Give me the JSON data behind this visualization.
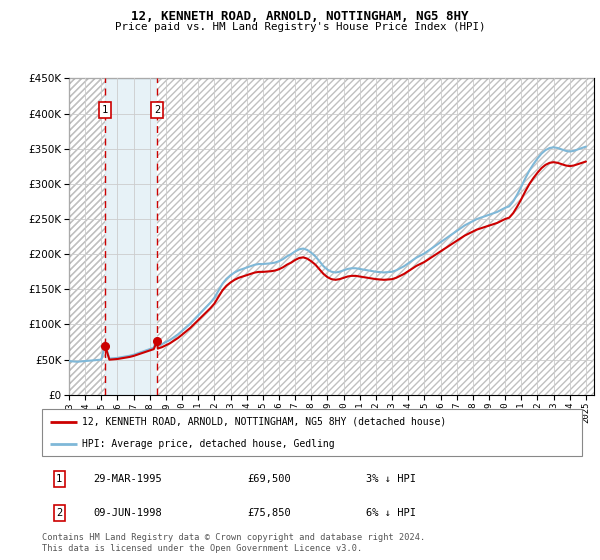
{
  "title": "12, KENNETH ROAD, ARNOLD, NOTTINGHAM, NG5 8HY",
  "subtitle": "Price paid vs. HM Land Registry's House Price Index (HPI)",
  "legend_line1": "12, KENNETH ROAD, ARNOLD, NOTTINGHAM, NG5 8HY (detached house)",
  "legend_line2": "HPI: Average price, detached house, Gedling",
  "footnote": "Contains HM Land Registry data © Crown copyright and database right 2024.\nThis data is licensed under the Open Government Licence v3.0.",
  "sale1_date": "29-MAR-1995",
  "sale1_price": 69500,
  "sale1_hpi": "3% ↓ HPI",
  "sale2_date": "09-JUN-1998",
  "sale2_price": 75850,
  "sale2_hpi": "6% ↓ HPI",
  "sale1_year": 1995.24,
  "sale2_year": 1998.44,
  "hpi_color": "#7fb8d8",
  "sale_color": "#cc0000",
  "grid_color": "#cccccc",
  "ylim": [
    0,
    450000
  ],
  "yticks": [
    0,
    50000,
    100000,
    150000,
    200000,
    250000,
    300000,
    350000,
    400000,
    450000
  ],
  "xlim_min": 1993.0,
  "xlim_max": 2025.5,
  "hpi_data": [
    [
      1993.0,
      48000
    ],
    [
      1993.25,
      47500
    ],
    [
      1993.5,
      47000
    ],
    [
      1993.75,
      47500
    ],
    [
      1994.0,
      48000
    ],
    [
      1994.25,
      48500
    ],
    [
      1994.5,
      49000
    ],
    [
      1994.75,
      49500
    ],
    [
      1995.0,
      50000
    ],
    [
      1995.24,
      71650
    ],
    [
      1995.5,
      51500
    ],
    [
      1995.75,
      52000
    ],
    [
      1996.0,
      52500
    ],
    [
      1996.25,
      53500
    ],
    [
      1996.5,
      54500
    ],
    [
      1996.75,
      55500
    ],
    [
      1997.0,
      57000
    ],
    [
      1997.25,
      59000
    ],
    [
      1997.5,
      61000
    ],
    [
      1997.75,
      63000
    ],
    [
      1998.0,
      65000
    ],
    [
      1998.25,
      67000
    ],
    [
      1998.44,
      80700
    ],
    [
      1998.5,
      70000
    ],
    [
      1998.75,
      72000
    ],
    [
      1999.0,
      75000
    ],
    [
      1999.25,
      78000
    ],
    [
      1999.5,
      82000
    ],
    [
      1999.75,
      86000
    ],
    [
      2000.0,
      91000
    ],
    [
      2000.25,
      96000
    ],
    [
      2000.5,
      101000
    ],
    [
      2000.75,
      107000
    ],
    [
      2001.0,
      113000
    ],
    [
      2001.25,
      119000
    ],
    [
      2001.5,
      125000
    ],
    [
      2001.75,
      131000
    ],
    [
      2002.0,
      138000
    ],
    [
      2002.25,
      148000
    ],
    [
      2002.5,
      158000
    ],
    [
      2002.75,
      165000
    ],
    [
      2003.0,
      170000
    ],
    [
      2003.25,
      174000
    ],
    [
      2003.5,
      177000
    ],
    [
      2003.75,
      179000
    ],
    [
      2004.0,
      181000
    ],
    [
      2004.25,
      183000
    ],
    [
      2004.5,
      185000
    ],
    [
      2004.75,
      186000
    ],
    [
      2005.0,
      186000
    ],
    [
      2005.25,
      186500
    ],
    [
      2005.5,
      187000
    ],
    [
      2005.75,
      188000
    ],
    [
      2006.0,
      190000
    ],
    [
      2006.25,
      193000
    ],
    [
      2006.5,
      197000
    ],
    [
      2006.75,
      200000
    ],
    [
      2007.0,
      204000
    ],
    [
      2007.25,
      207000
    ],
    [
      2007.5,
      208000
    ],
    [
      2007.75,
      206000
    ],
    [
      2008.0,
      202000
    ],
    [
      2008.25,
      197000
    ],
    [
      2008.5,
      190000
    ],
    [
      2008.75,
      183000
    ],
    [
      2009.0,
      178000
    ],
    [
      2009.25,
      175000
    ],
    [
      2009.5,
      174000
    ],
    [
      2009.75,
      175000
    ],
    [
      2010.0,
      177000
    ],
    [
      2010.25,
      179000
    ],
    [
      2010.5,
      180000
    ],
    [
      2010.75,
      180000
    ],
    [
      2011.0,
      179000
    ],
    [
      2011.25,
      178000
    ],
    [
      2011.5,
      177000
    ],
    [
      2011.75,
      176000
    ],
    [
      2012.0,
      175000
    ],
    [
      2012.25,
      174500
    ],
    [
      2012.5,
      174000
    ],
    [
      2012.75,
      174500
    ],
    [
      2013.0,
      175000
    ],
    [
      2013.25,
      177000
    ],
    [
      2013.5,
      180000
    ],
    [
      2013.75,
      183000
    ],
    [
      2014.0,
      187000
    ],
    [
      2014.25,
      191000
    ],
    [
      2014.5,
      195000
    ],
    [
      2014.75,
      198000
    ],
    [
      2015.0,
      201000
    ],
    [
      2015.25,
      205000
    ],
    [
      2015.5,
      209000
    ],
    [
      2015.75,
      213000
    ],
    [
      2016.0,
      217000
    ],
    [
      2016.25,
      221000
    ],
    [
      2016.5,
      225000
    ],
    [
      2016.75,
      229000
    ],
    [
      2017.0,
      233000
    ],
    [
      2017.25,
      237000
    ],
    [
      2017.5,
      241000
    ],
    [
      2017.75,
      244000
    ],
    [
      2018.0,
      247000
    ],
    [
      2018.25,
      250000
    ],
    [
      2018.5,
      252000
    ],
    [
      2018.75,
      254000
    ],
    [
      2019.0,
      256000
    ],
    [
      2019.25,
      258000
    ],
    [
      2019.5,
      260000
    ],
    [
      2019.75,
      263000
    ],
    [
      2020.0,
      266000
    ],
    [
      2020.25,
      268000
    ],
    [
      2020.5,
      275000
    ],
    [
      2020.75,
      285000
    ],
    [
      2021.0,
      296000
    ],
    [
      2021.25,
      308000
    ],
    [
      2021.5,
      319000
    ],
    [
      2021.75,
      328000
    ],
    [
      2022.0,
      336000
    ],
    [
      2022.25,
      343000
    ],
    [
      2022.5,
      348000
    ],
    [
      2022.75,
      351000
    ],
    [
      2023.0,
      352000
    ],
    [
      2023.25,
      351000
    ],
    [
      2023.5,
      349000
    ],
    [
      2023.75,
      347000
    ],
    [
      2024.0,
      346000
    ],
    [
      2024.25,
      347000
    ],
    [
      2024.5,
      349000
    ],
    [
      2024.75,
      351000
    ],
    [
      2025.0,
      353000
    ]
  ],
  "sale_data": [
    [
      1995.24,
      69500
    ],
    [
      1998.44,
      75850
    ]
  ]
}
